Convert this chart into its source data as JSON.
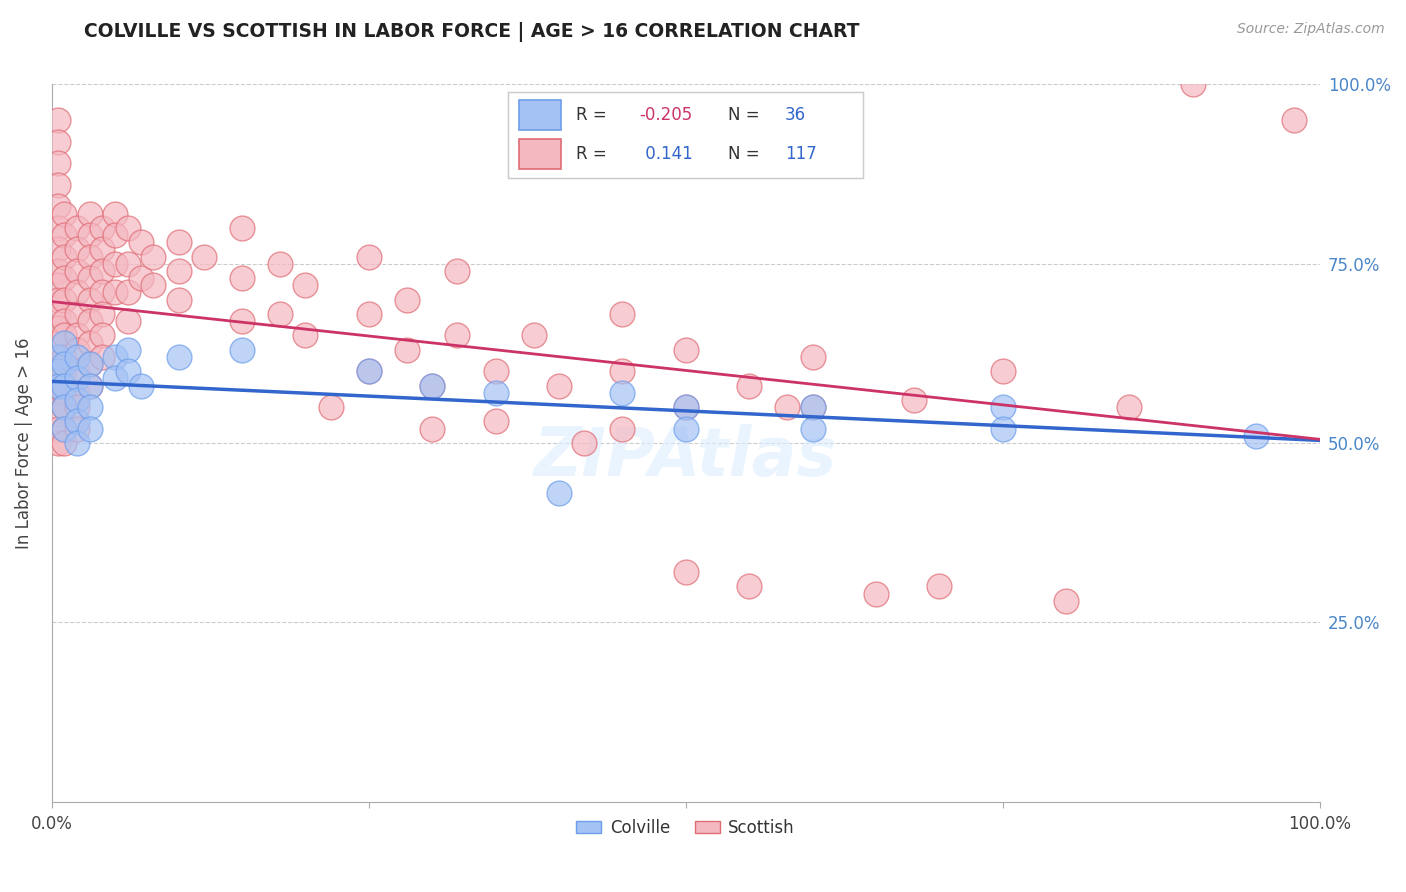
{
  "title": "COLVILLE VS SCOTTISH IN LABOR FORCE | AGE > 16 CORRELATION CHART",
  "source_text": "Source: ZipAtlas.com",
  "ylabel": "In Labor Force | Age > 16",
  "colville_color": "#a4c2f4",
  "scottish_color": "#f4b8c1",
  "colville_edge_color": "#6d9eeb",
  "scottish_edge_color": "#e06c75",
  "colville_line_color": "#3366cc",
  "scottish_line_color": "#cc3366",
  "colville_R": -0.205,
  "colville_N": 36,
  "scottish_R": 0.141,
  "scottish_N": 117,
  "watermark": "ZIPAtlas",
  "colville_points": [
    [
      0.005,
      0.62
    ],
    [
      0.005,
      0.6
    ],
    [
      0.005,
      0.58
    ],
    [
      0.01,
      0.64
    ],
    [
      0.01,
      0.61
    ],
    [
      0.01,
      0.58
    ],
    [
      0.01,
      0.55
    ],
    [
      0.01,
      0.52
    ],
    [
      0.02,
      0.62
    ],
    [
      0.02,
      0.59
    ],
    [
      0.02,
      0.56
    ],
    [
      0.02,
      0.53
    ],
    [
      0.02,
      0.5
    ],
    [
      0.03,
      0.61
    ],
    [
      0.03,
      0.58
    ],
    [
      0.03,
      0.55
    ],
    [
      0.03,
      0.52
    ],
    [
      0.05,
      0.62
    ],
    [
      0.05,
      0.59
    ],
    [
      0.06,
      0.63
    ],
    [
      0.06,
      0.6
    ],
    [
      0.07,
      0.58
    ],
    [
      0.1,
      0.62
    ],
    [
      0.15,
      0.63
    ],
    [
      0.25,
      0.6
    ],
    [
      0.3,
      0.58
    ],
    [
      0.35,
      0.57
    ],
    [
      0.4,
      0.43
    ],
    [
      0.45,
      0.57
    ],
    [
      0.5,
      0.55
    ],
    [
      0.5,
      0.52
    ],
    [
      0.6,
      0.55
    ],
    [
      0.6,
      0.52
    ],
    [
      0.75,
      0.55
    ],
    [
      0.75,
      0.52
    ],
    [
      0.95,
      0.51
    ]
  ],
  "scottish_points": [
    [
      0.005,
      0.95
    ],
    [
      0.005,
      0.92
    ],
    [
      0.005,
      0.89
    ],
    [
      0.005,
      0.86
    ],
    [
      0.005,
      0.83
    ],
    [
      0.005,
      0.8
    ],
    [
      0.005,
      0.77
    ],
    [
      0.005,
      0.74
    ],
    [
      0.005,
      0.72
    ],
    [
      0.005,
      0.7
    ],
    [
      0.005,
      0.68
    ],
    [
      0.005,
      0.66
    ],
    [
      0.005,
      0.64
    ],
    [
      0.005,
      0.62
    ],
    [
      0.005,
      0.6
    ],
    [
      0.005,
      0.58
    ],
    [
      0.005,
      0.56
    ],
    [
      0.005,
      0.54
    ],
    [
      0.005,
      0.52
    ],
    [
      0.005,
      0.5
    ],
    [
      0.01,
      0.82
    ],
    [
      0.01,
      0.79
    ],
    [
      0.01,
      0.76
    ],
    [
      0.01,
      0.73
    ],
    [
      0.01,
      0.7
    ],
    [
      0.01,
      0.67
    ],
    [
      0.01,
      0.65
    ],
    [
      0.01,
      0.62
    ],
    [
      0.01,
      0.6
    ],
    [
      0.01,
      0.57
    ],
    [
      0.01,
      0.55
    ],
    [
      0.01,
      0.52
    ],
    [
      0.01,
      0.5
    ],
    [
      0.02,
      0.8
    ],
    [
      0.02,
      0.77
    ],
    [
      0.02,
      0.74
    ],
    [
      0.02,
      0.71
    ],
    [
      0.02,
      0.68
    ],
    [
      0.02,
      0.65
    ],
    [
      0.02,
      0.63
    ],
    [
      0.02,
      0.6
    ],
    [
      0.02,
      0.57
    ],
    [
      0.02,
      0.55
    ],
    [
      0.02,
      0.52
    ],
    [
      0.03,
      0.82
    ],
    [
      0.03,
      0.79
    ],
    [
      0.03,
      0.76
    ],
    [
      0.03,
      0.73
    ],
    [
      0.03,
      0.7
    ],
    [
      0.03,
      0.67
    ],
    [
      0.03,
      0.64
    ],
    [
      0.03,
      0.61
    ],
    [
      0.03,
      0.58
    ],
    [
      0.04,
      0.8
    ],
    [
      0.04,
      0.77
    ],
    [
      0.04,
      0.74
    ],
    [
      0.04,
      0.71
    ],
    [
      0.04,
      0.68
    ],
    [
      0.04,
      0.65
    ],
    [
      0.04,
      0.62
    ],
    [
      0.05,
      0.82
    ],
    [
      0.05,
      0.79
    ],
    [
      0.05,
      0.75
    ],
    [
      0.05,
      0.71
    ],
    [
      0.06,
      0.8
    ],
    [
      0.06,
      0.75
    ],
    [
      0.06,
      0.71
    ],
    [
      0.06,
      0.67
    ],
    [
      0.07,
      0.78
    ],
    [
      0.07,
      0.73
    ],
    [
      0.08,
      0.76
    ],
    [
      0.08,
      0.72
    ],
    [
      0.1,
      0.78
    ],
    [
      0.1,
      0.74
    ],
    [
      0.1,
      0.7
    ],
    [
      0.12,
      0.76
    ],
    [
      0.15,
      0.8
    ],
    [
      0.15,
      0.73
    ],
    [
      0.15,
      0.67
    ],
    [
      0.18,
      0.75
    ],
    [
      0.18,
      0.68
    ],
    [
      0.2,
      0.72
    ],
    [
      0.2,
      0.65
    ],
    [
      0.22,
      0.55
    ],
    [
      0.25,
      0.76
    ],
    [
      0.25,
      0.68
    ],
    [
      0.25,
      0.6
    ],
    [
      0.28,
      0.7
    ],
    [
      0.28,
      0.63
    ],
    [
      0.3,
      0.58
    ],
    [
      0.3,
      0.52
    ],
    [
      0.32,
      0.74
    ],
    [
      0.32,
      0.65
    ],
    [
      0.35,
      0.6
    ],
    [
      0.35,
      0.53
    ],
    [
      0.38,
      0.65
    ],
    [
      0.4,
      0.58
    ],
    [
      0.42,
      0.5
    ],
    [
      0.45,
      0.68
    ],
    [
      0.45,
      0.6
    ],
    [
      0.45,
      0.52
    ],
    [
      0.5,
      0.63
    ],
    [
      0.5,
      0.55
    ],
    [
      0.5,
      0.32
    ],
    [
      0.55,
      0.58
    ],
    [
      0.55,
      0.3
    ],
    [
      0.58,
      0.55
    ],
    [
      0.6,
      0.62
    ],
    [
      0.6,
      0.55
    ],
    [
      0.65,
      0.29
    ],
    [
      0.68,
      0.56
    ],
    [
      0.7,
      0.3
    ],
    [
      0.75,
      0.6
    ],
    [
      0.8,
      0.28
    ],
    [
      0.85,
      0.55
    ],
    [
      0.9,
      1.0
    ],
    [
      0.98,
      0.95
    ]
  ]
}
